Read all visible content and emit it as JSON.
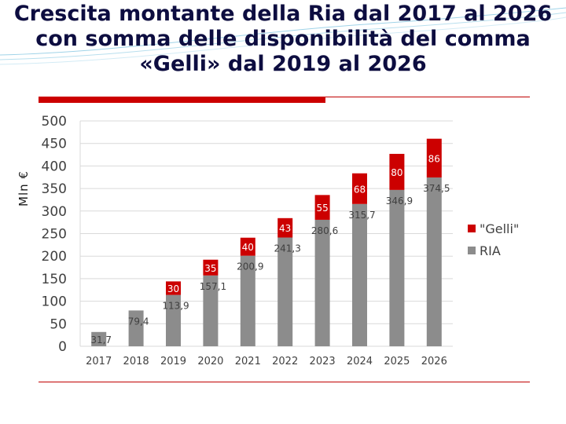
{
  "title": {
    "line1": "Crescita montante della Ria dal 2017 al 2026",
    "line2": "con somma delle disponibilità del comma",
    "line3": "«Gelli» dal 2019 al 2026"
  },
  "colors": {
    "title": "#0d0d40",
    "accent": "#cc0000",
    "ria": "#8c8c8c",
    "gelli": "#cc0000",
    "grid": "#d9d9d9"
  },
  "chart_data": {
    "type": "bar",
    "stacked": true,
    "ylabel": "Mln €",
    "ylim": [
      0,
      500
    ],
    "yticks": [
      0,
      50,
      100,
      150,
      200,
      250,
      300,
      350,
      400,
      450,
      500
    ],
    "grid": true,
    "legend_position": "right",
    "categories": [
      "2017",
      "2018",
      "2019",
      "2020",
      "2021",
      "2022",
      "2023",
      "2024",
      "2025",
      "2026"
    ],
    "series": [
      {
        "name": "RIA",
        "color": "#8c8c8c",
        "values": [
          31.7,
          79.4,
          113.9,
          157.1,
          200.9,
          241.3,
          280.6,
          315.7,
          346.9,
          374.5
        ],
        "labels": [
          "31,7",
          "79,4",
          "113,9",
          "157,1",
          "200,9",
          "241,3",
          "280,6",
          "315,7",
          "346,9",
          "374,5"
        ]
      },
      {
        "name": "\"Gelli\"",
        "color": "#cc0000",
        "values": [
          0,
          0,
          30,
          35,
          40,
          43,
          55,
          68,
          80,
          86
        ],
        "labels": [
          "",
          "",
          "30",
          "35",
          "40",
          "43",
          "55",
          "68",
          "80",
          "86"
        ]
      }
    ]
  }
}
